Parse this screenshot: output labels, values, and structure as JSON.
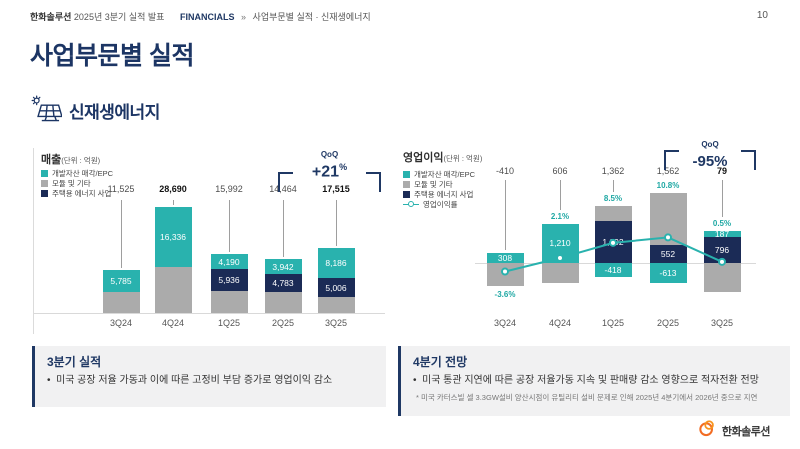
{
  "page": {
    "header": {
      "brand": "한화솔루션",
      "subtitle": "2025년 3분기 실적 발표",
      "breadcrumb_root": "FINANCIALS",
      "breadcrumb_sep": "»",
      "breadcrumb_path": "사업부문별 실적 · 신재생에너지",
      "page_number": "10"
    },
    "title": "사업부문별 실적",
    "section_label": "신재생에너지",
    "footer_company": "한화솔루션"
  },
  "colors": {
    "teal": "#29B2AE",
    "gray": "#ABABAB",
    "navy": "#1B2B56",
    "accent_navy": "#1F3864",
    "line_teal": "#29B2AE",
    "logo_orange": "#F26C23",
    "box_bg": "#F1F1F2"
  },
  "chart_data": [
    {
      "type": "bar",
      "stacked": true,
      "title": "매출",
      "unit": "(단위 : 억원)",
      "categories": [
        "3Q24",
        "4Q24",
        "1Q25",
        "2Q25",
        "3Q25"
      ],
      "legend": [
        "개발자산 매각/EPC",
        "모듈 및 기타",
        "주택용 에너지 사업"
      ],
      "legend_colors": [
        "teal",
        "gray",
        "navy"
      ],
      "series": [
        {
          "name": "모듈 및 기타",
          "color": "gray",
          "values": [
            5740,
            12354,
            5866,
            5739,
            4323
          ],
          "labels": [
            null,
            null,
            null,
            null,
            null
          ]
        },
        {
          "name": "주택용 에너지 사업",
          "color": "navy",
          "values": [
            0,
            0,
            5936,
            4783,
            5006
          ],
          "labels": [
            null,
            null,
            "5,936",
            "4,783",
            "5,006"
          ]
        },
        {
          "name": "개발자산 매각/EPC",
          "color": "teal",
          "values": [
            5785,
            16336,
            4190,
            3942,
            8186
          ],
          "labels": [
            "5,785",
            "16,336",
            "4,190",
            "3,942",
            "8,186"
          ]
        }
      ],
      "totals": [
        11525,
        28690,
        15992,
        14464,
        17515
      ],
      "total_labels": [
        "11,525",
        "28,690",
        "15,992",
        "14,464",
        "17,515"
      ],
      "total_bold": [
        false,
        true,
        false,
        false,
        true
      ],
      "qoq": {
        "label": "QoQ",
        "value": "+21",
        "suffix": "%"
      }
    },
    {
      "type": "bar",
      "stacked": true,
      "title": "영업이익",
      "unit": "(단위 : 억원)",
      "categories": [
        "3Q24",
        "4Q24",
        "1Q25",
        "2Q25",
        "3Q25"
      ],
      "legend": [
        "개발자산 매각/EPC",
        "모듈 및 기타",
        "주택용 에너지 사업",
        "영업이익률"
      ],
      "legend_colors": [
        "teal",
        "gray",
        "navy",
        "line"
      ],
      "bars": [
        {
          "pos": [
            {
              "color": "teal",
              "value": 308,
              "label": "308"
            }
          ],
          "neg": [
            {
              "color": "gray",
              "value": 718,
              "label": null
            }
          ]
        },
        {
          "pos": [
            {
              "color": "teal",
              "value": 1210,
              "label": "1,210"
            }
          ],
          "neg": [
            {
              "color": "gray",
              "value": 604,
              "label": null
            }
          ]
        },
        {
          "pos": [
            {
              "color": "navy",
              "value": 1292,
              "label": "1,292"
            },
            {
              "color": "gray",
              "value": 488,
              "label": null
            }
          ],
          "neg": [
            {
              "color": "teal",
              "value": 418,
              "label": "-418"
            }
          ]
        },
        {
          "pos": [
            {
              "color": "navy",
              "value": 552,
              "label": "552"
            },
            {
              "color": "gray",
              "value": 1623,
              "label": null
            }
          ],
          "neg": [
            {
              "color": "teal",
              "value": 613,
              "label": "-613"
            }
          ]
        },
        {
          "pos": [
            {
              "color": "navy",
              "value": 796,
              "label": "796"
            },
            {
              "color": "teal",
              "value": 187,
              "label": "187"
            }
          ],
          "neg": [
            {
              "color": "gray",
              "value": 904,
              "label": null
            }
          ]
        }
      ],
      "totals": [
        -410,
        606,
        1362,
        1562,
        79
      ],
      "total_labels": [
        "-410",
        "606",
        "1,362",
        "1,562",
        "79"
      ],
      "total_bold": [
        false,
        false,
        false,
        false,
        true
      ],
      "line": {
        "name": "영업이익률",
        "values": [
          -3.6,
          2.1,
          8.5,
          10.8,
          0.5
        ],
        "labels": [
          "-3.6%",
          "2.1%",
          "8.5%",
          "10.8%",
          "0.5%"
        ],
        "label_above": [
          false,
          true,
          true,
          true,
          true
        ]
      },
      "qoq": {
        "label": "QoQ",
        "value": "-95%",
        "suffix": ""
      }
    }
  ],
  "notes": {
    "left": {
      "title": "3분기 실적",
      "bullets": [
        "미국 공장 저율 가동과 이에 따른 고정비 부담 증가로 영업이익 감소"
      ]
    },
    "right": {
      "title": "4분기 전망",
      "bullets": [
        "미국 통관 지연에 따른 공장 저율가동 지속 및 판매량 감소 영향으로 적자전환 전망"
      ],
      "footnote": "* 미국 카터스빌 셀 3.3GW설비 양산시점이 유틸리티 설비 문제로 인해 2025년 4분기에서 2026년 중으로 지연"
    }
  }
}
